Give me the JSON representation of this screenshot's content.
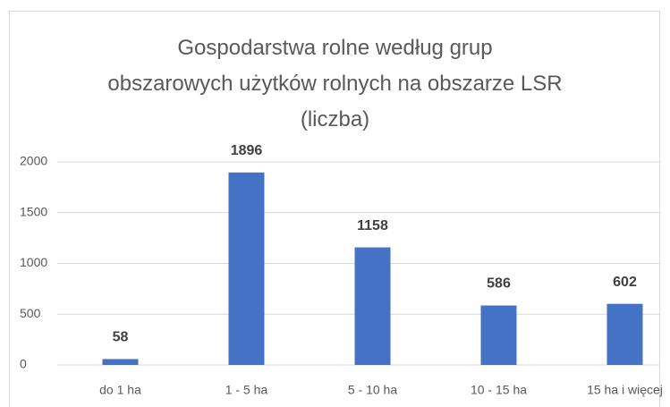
{
  "chart_data": {
    "type": "bar",
    "title": "Gospodarstwa rolne według grup\nobszarowych użytków rolnych na obszarze LSR\n(liczba)",
    "categories": [
      "do 1 ha",
      "1 - 5 ha",
      "5 - 10 ha",
      "10 - 15 ha",
      "15 ha i więcej"
    ],
    "values": [
      58,
      1896,
      1158,
      586,
      602
    ],
    "color": "#4472c4",
    "ylim": [
      0,
      2000
    ],
    "yticks": [
      0,
      500,
      1000,
      1500,
      2000
    ],
    "grid": true
  }
}
